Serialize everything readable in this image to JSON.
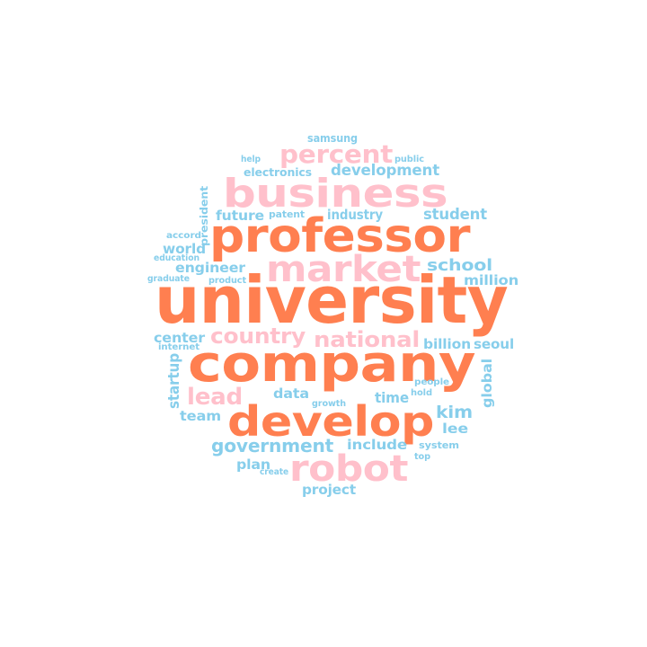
{
  "palette": {
    "primary": "#ff7f50",
    "secondary": "#ffc0cb",
    "tertiary": "#87ceeb"
  },
  "words": [
    {
      "text": "university",
      "color": "primary"
    },
    {
      "text": "company",
      "color": "primary"
    },
    {
      "text": "professor",
      "color": "primary"
    },
    {
      "text": "develop",
      "color": "primary"
    },
    {
      "text": "business",
      "color": "secondary"
    },
    {
      "text": "robot",
      "color": "secondary"
    },
    {
      "text": "market",
      "color": "secondary"
    },
    {
      "text": "percent",
      "color": "secondary"
    },
    {
      "text": "national",
      "color": "secondary"
    },
    {
      "text": "country",
      "color": "secondary"
    },
    {
      "text": "lead",
      "color": "secondary"
    },
    {
      "text": "government",
      "color": "tertiary"
    },
    {
      "text": "development",
      "color": "tertiary"
    },
    {
      "text": "school",
      "color": "tertiary"
    },
    {
      "text": "student",
      "color": "tertiary"
    },
    {
      "text": "million",
      "color": "tertiary"
    },
    {
      "text": "industry",
      "color": "tertiary"
    },
    {
      "text": "future",
      "color": "tertiary"
    },
    {
      "text": "engineer",
      "color": "tertiary"
    },
    {
      "text": "world",
      "color": "tertiary"
    },
    {
      "text": "center",
      "color": "tertiary"
    },
    {
      "text": "billion",
      "color": "tertiary"
    },
    {
      "text": "seoul",
      "color": "tertiary"
    },
    {
      "text": "kim",
      "color": "tertiary"
    },
    {
      "text": "lee",
      "color": "tertiary"
    },
    {
      "text": "include",
      "color": "tertiary"
    },
    {
      "text": "data",
      "color": "tertiary"
    },
    {
      "text": "time",
      "color": "tertiary"
    },
    {
      "text": "team",
      "color": "tertiary"
    },
    {
      "text": "plan",
      "color": "tertiary"
    },
    {
      "text": "project",
      "color": "tertiary"
    },
    {
      "text": "startup",
      "color": "tertiary"
    },
    {
      "text": "global",
      "color": "tertiary"
    },
    {
      "text": "electronics",
      "color": "tertiary"
    },
    {
      "text": "samsung",
      "color": "tertiary"
    },
    {
      "text": "president",
      "color": "tertiary"
    },
    {
      "text": "patent",
      "color": "tertiary"
    },
    {
      "text": "accord",
      "color": "tertiary"
    },
    {
      "text": "education",
      "color": "tertiary"
    },
    {
      "text": "graduate",
      "color": "tertiary"
    },
    {
      "text": "product",
      "color": "tertiary"
    },
    {
      "text": "internet",
      "color": "tertiary"
    },
    {
      "text": "help",
      "color": "tertiary"
    },
    {
      "text": "public",
      "color": "tertiary"
    },
    {
      "text": "people",
      "color": "tertiary"
    },
    {
      "text": "hold",
      "color": "tertiary"
    },
    {
      "text": "growth",
      "color": "tertiary"
    },
    {
      "text": "system",
      "color": "tertiary"
    },
    {
      "text": "top",
      "color": "tertiary"
    },
    {
      "text": "create",
      "color": "tertiary"
    }
  ]
}
